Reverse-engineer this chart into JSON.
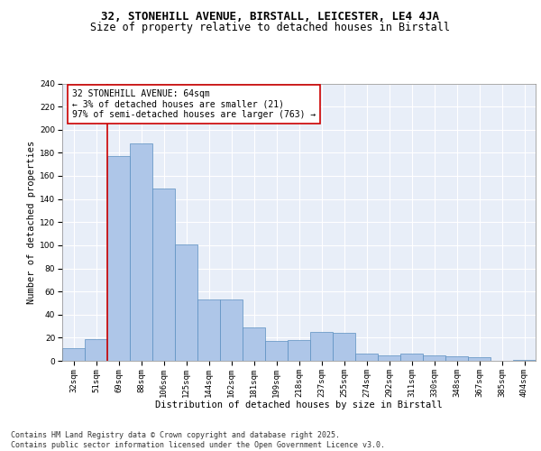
{
  "title_line1": "32, STONEHILL AVENUE, BIRSTALL, LEICESTER, LE4 4JA",
  "title_line2": "Size of property relative to detached houses in Birstall",
  "xlabel": "Distribution of detached houses by size in Birstall",
  "ylabel": "Number of detached properties",
  "categories": [
    "32sqm",
    "51sqm",
    "69sqm",
    "88sqm",
    "106sqm",
    "125sqm",
    "144sqm",
    "162sqm",
    "181sqm",
    "199sqm",
    "218sqm",
    "237sqm",
    "255sqm",
    "274sqm",
    "292sqm",
    "311sqm",
    "330sqm",
    "348sqm",
    "367sqm",
    "385sqm",
    "404sqm"
  ],
  "values": [
    11,
    19,
    177,
    188,
    149,
    101,
    53,
    53,
    29,
    17,
    18,
    25,
    24,
    6,
    5,
    6,
    5,
    4,
    3,
    0,
    1
  ],
  "bar_color": "#aec6e8",
  "bar_edge_color": "#5a8fc0",
  "vline_color": "#cc0000",
  "annotation_text": "32 STONEHILL AVENUE: 64sqm\n← 3% of detached houses are smaller (21)\n97% of semi-detached houses are larger (763) →",
  "annotation_box_color": "#ffffff",
  "annotation_box_edge": "#cc0000",
  "ylim": [
    0,
    240
  ],
  "yticks": [
    0,
    20,
    40,
    60,
    80,
    100,
    120,
    140,
    160,
    180,
    200,
    220,
    240
  ],
  "background_color": "#e8eef8",
  "grid_color": "#ffffff",
  "footer_text": "Contains HM Land Registry data © Crown copyright and database right 2025.\nContains public sector information licensed under the Open Government Licence v3.0.",
  "title_fontsize": 9,
  "subtitle_fontsize": 8.5,
  "axis_label_fontsize": 7.5,
  "tick_fontsize": 6.5,
  "annotation_fontsize": 7,
  "footer_fontsize": 6
}
